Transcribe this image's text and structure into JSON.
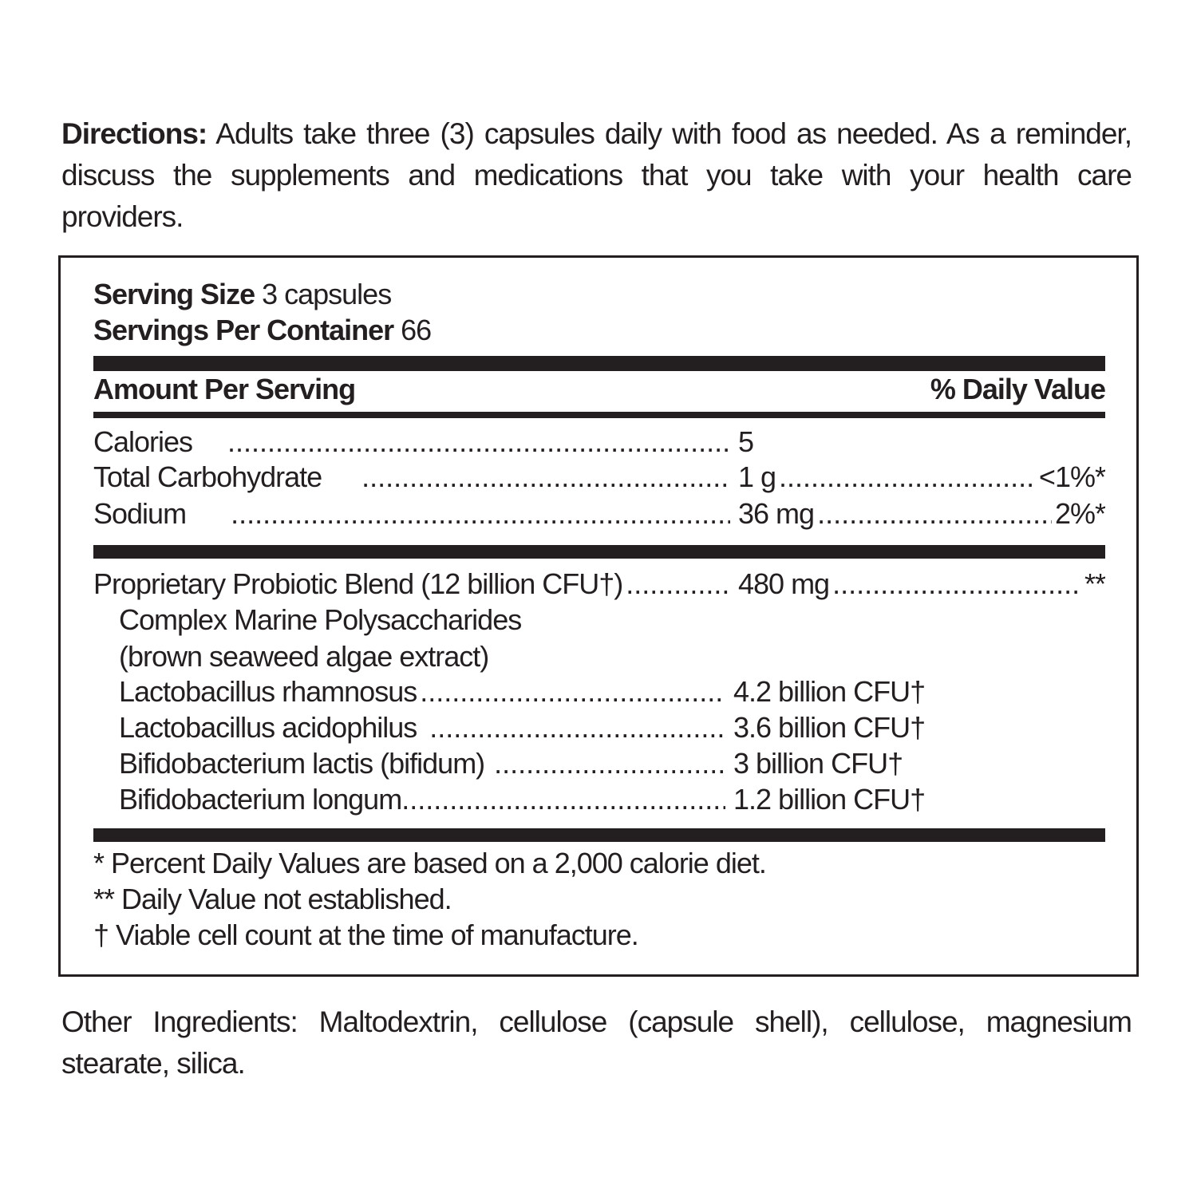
{
  "directions": {
    "label": "Directions:",
    "text": " Adults take three (3) capsules daily with food as needed. As a reminder, discuss the supplements and medications that you take with your health care providers."
  },
  "facts": {
    "serving_size_label": "Serving Size",
    "serving_size_value": " 3 capsules",
    "servings_label": "Servings Per Container",
    "servings_value": " 66",
    "amount_header": "Amount Per Serving",
    "dv_header": "% Daily Value",
    "nutrients": [
      {
        "name": "Calories",
        "amount": "5",
        "dv": ""
      },
      {
        "name": "Total Carbohydrate",
        "amount": "1 g",
        "dv": "<1%*"
      },
      {
        "name": "Sodium",
        "amount": "36 mg",
        "dv": "2%*"
      }
    ],
    "blend": {
      "name": "Proprietary Probiotic Blend (12 billion CFU†)",
      "amount": "480 mg",
      "dv": "**"
    },
    "blend_sub": [
      "Complex Marine Polysaccharides",
      "(brown seaweed algae extract)"
    ],
    "strains": [
      {
        "name": "Lactobacillus rhamnosus",
        "amount": "4.2 billion CFU†"
      },
      {
        "name": "Lactobacillus acidophilus",
        "amount": "3.6 billion CFU†"
      },
      {
        "name": "Bifidobacterium lactis (bifidum)",
        "amount": "3 billion CFU†"
      },
      {
        "name": "Bifidobacterium longum",
        "amount": "1.2 billion CFU†"
      }
    ],
    "footnotes": [
      "* Percent Daily Values are based on a 2,000 calorie diet.",
      "** Daily Value not established.",
      "† Viable cell count at the time of manufacture."
    ]
  },
  "other_ingredients": {
    "text": "Other Ingredients: Maltodextrin, cellulose (capsule shell), cellulose, magnesium stearate, silica."
  }
}
